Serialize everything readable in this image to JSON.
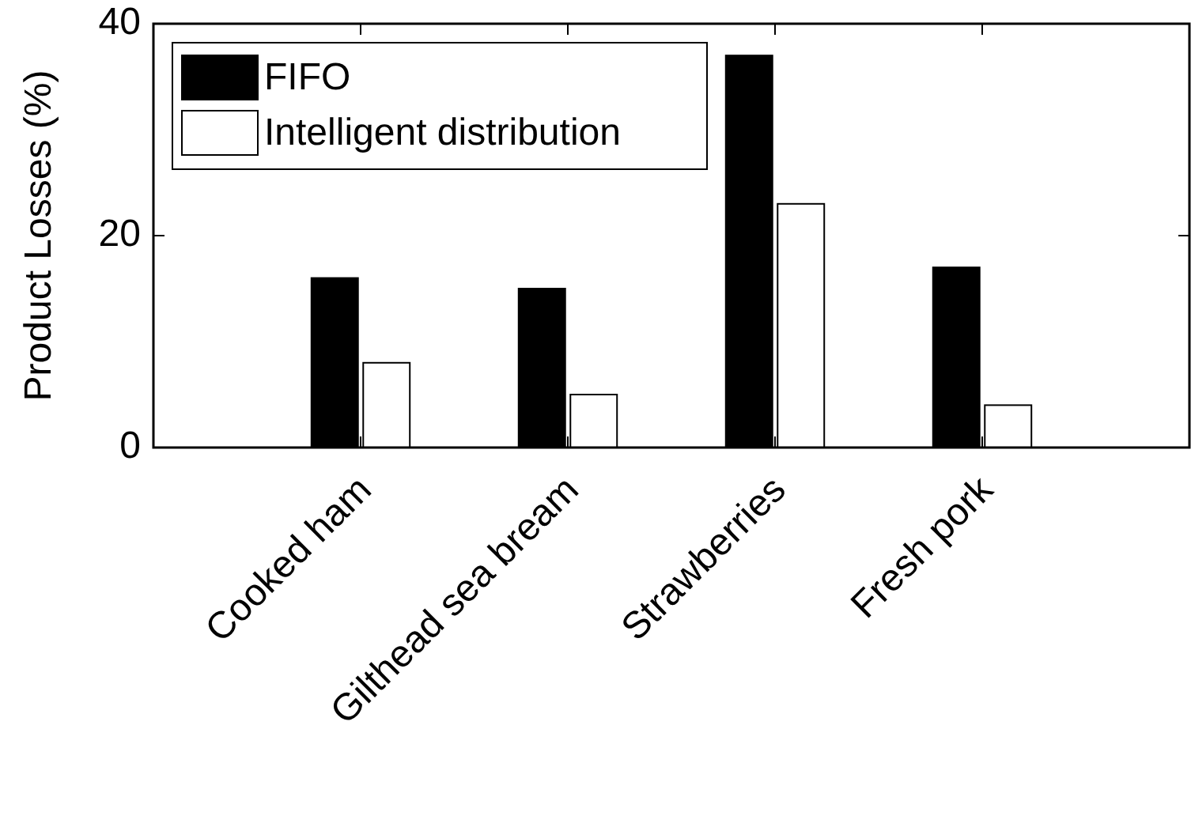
{
  "chart_data": {
    "type": "bar",
    "ylabel": "Product Losses (%)",
    "categories": [
      "Cooked ham",
      "Gilthead sea bream",
      "Strawberries",
      "Fresh pork"
    ],
    "series": [
      {
        "name": "FIFO",
        "color": "#000000",
        "values": [
          16,
          15,
          37,
          17
        ]
      },
      {
        "name": "Intelligent distribution",
        "color": "#ffffff",
        "values": [
          8,
          5,
          23,
          4
        ]
      }
    ],
    "ylim": [
      0,
      40
    ],
    "yticks": [
      0,
      20,
      40
    ],
    "legend": "top left",
    "grid": false
  }
}
